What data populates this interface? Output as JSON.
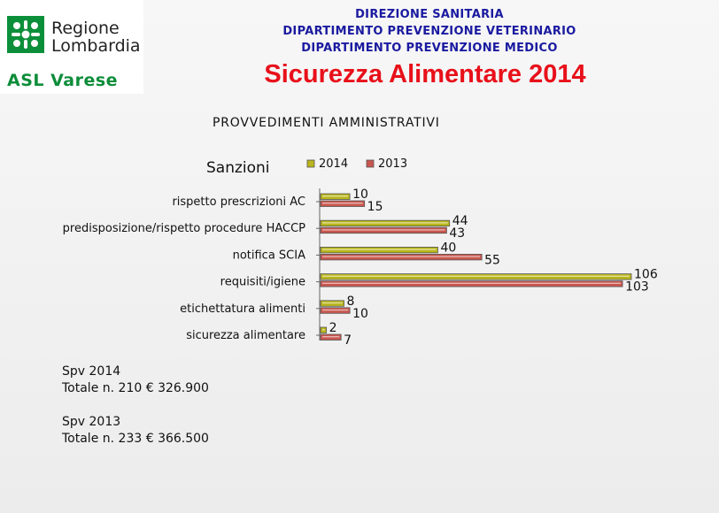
{
  "logo": {
    "line1": "Regione",
    "line2": "Lombardia",
    "asl": "ASL Varese"
  },
  "header": {
    "line1": "DIREZIONE SANITARIA",
    "line2": "DIPARTIMENTO PREVENZIONE VETERINARIO",
    "line3": "DIPARTIMENTO PREVENZIONE MEDICO",
    "title": "Sicurezza Alimentare 2014",
    "subtitle": "PROVVEDIMENTI   AMMINISTRATIVI"
  },
  "chart_data": {
    "type": "bar",
    "orientation": "horizontal",
    "title": "Sanzioni",
    "legend_placement": "top",
    "grid": false,
    "categories": [
      "rispetto prescrizioni AC",
      "predisposizione/rispetto procedure HACCP",
      "notifica SCIA",
      "requisiti/igiene",
      "etichettatura alimenti",
      "sicurezza alimentare"
    ],
    "series": [
      {
        "name": "2014",
        "values": [
          10,
          44,
          40,
          106,
          8,
          2
        ],
        "color": "#b9b51c"
      },
      {
        "name": "2013",
        "values": [
          15,
          43,
          55,
          103,
          10,
          7
        ],
        "color": "#c9574f"
      }
    ],
    "xlim": [
      0,
      106
    ]
  },
  "totals": {
    "spv2014_label": "Spv 2014",
    "spv2014_text": "Totale n. 210 € 326.900",
    "spv2013_label": "Spv 2013",
    "spv2013_text": "Totale n. 233 € 366.500"
  }
}
